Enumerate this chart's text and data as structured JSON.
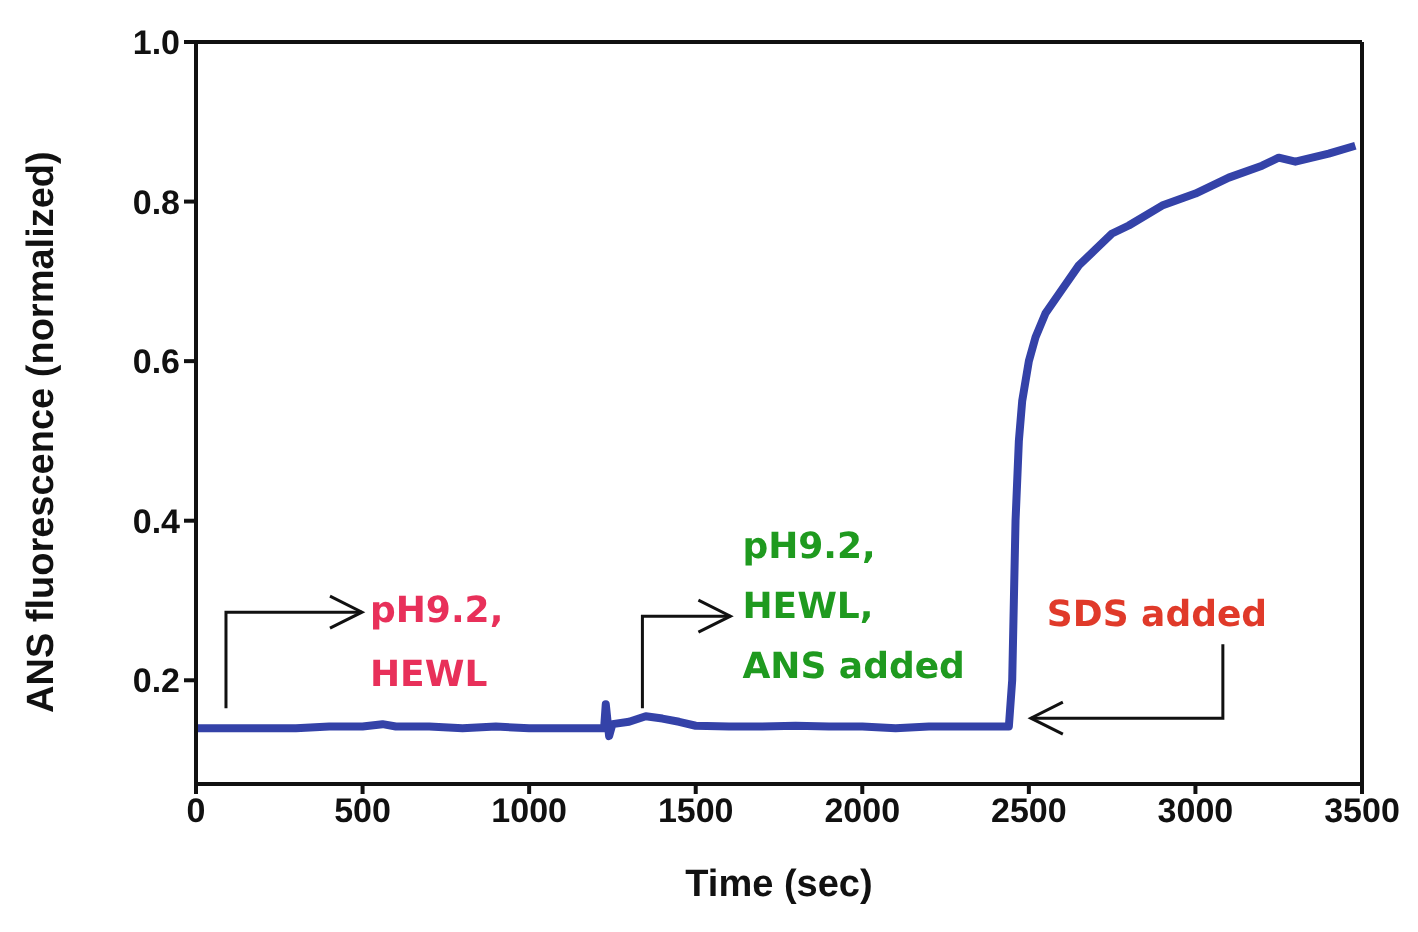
{
  "chart_data": {
    "type": "line",
    "xlabel": "Time (sec)",
    "ylabel": "ANS fluorescence (normalized)",
    "x": [
      0,
      100,
      200,
      300,
      400,
      500,
      560,
      600,
      700,
      800,
      900,
      1000,
      1100,
      1200,
      1225,
      1230,
      1240,
      1250,
      1300,
      1350,
      1400,
      1450,
      1500,
      1600,
      1700,
      1800,
      1900,
      2000,
      2100,
      2200,
      2300,
      2400,
      2440,
      2450,
      2455,
      2460,
      2470,
      2480,
      2500,
      2520,
      2550,
      2600,
      2650,
      2700,
      2750,
      2800,
      2900,
      3000,
      3100,
      3200,
      3250,
      3300,
      3400,
      3480
    ],
    "series": [
      {
        "color": "#3442a8",
        "values": [
          0.14,
          0.14,
          0.14,
          0.14,
          0.142,
          0.142,
          0.145,
          0.142,
          0.142,
          0.14,
          0.142,
          0.14,
          0.14,
          0.14,
          0.14,
          0.17,
          0.13,
          0.145,
          0.148,
          0.155,
          0.152,
          0.148,
          0.143,
          0.142,
          0.142,
          0.143,
          0.142,
          0.142,
          0.14,
          0.142,
          0.142,
          0.142,
          0.142,
          0.2,
          0.3,
          0.4,
          0.5,
          0.55,
          0.6,
          0.63,
          0.66,
          0.69,
          0.72,
          0.74,
          0.76,
          0.77,
          0.795,
          0.81,
          0.83,
          0.845,
          0.855,
          0.85,
          0.86,
          0.87
        ]
      }
    ],
    "xlim": [
      0,
      3500
    ],
    "xticks": [
      0,
      500,
      1000,
      1500,
      2000,
      2500,
      3000,
      3500
    ],
    "ylim": [
      0.07,
      1.0
    ],
    "yticks": [
      0.2,
      0.4,
      0.6,
      0.8,
      {
        "value": 1,
        "label": "1.0"
      }
    ],
    "grid": false,
    "legend": false,
    "marker": "none",
    "line_style": "solid",
    "annotations": [
      {
        "text": "pH9.2, HEWL",
        "x": 90,
        "y": 0.155
      },
      {
        "text": "pH9.2, HEWL, ANS added",
        "x": 1340,
        "y": 0.155
      },
      {
        "text": "SDS added",
        "x": 2470,
        "y": 0.155
      }
    ]
  }
}
